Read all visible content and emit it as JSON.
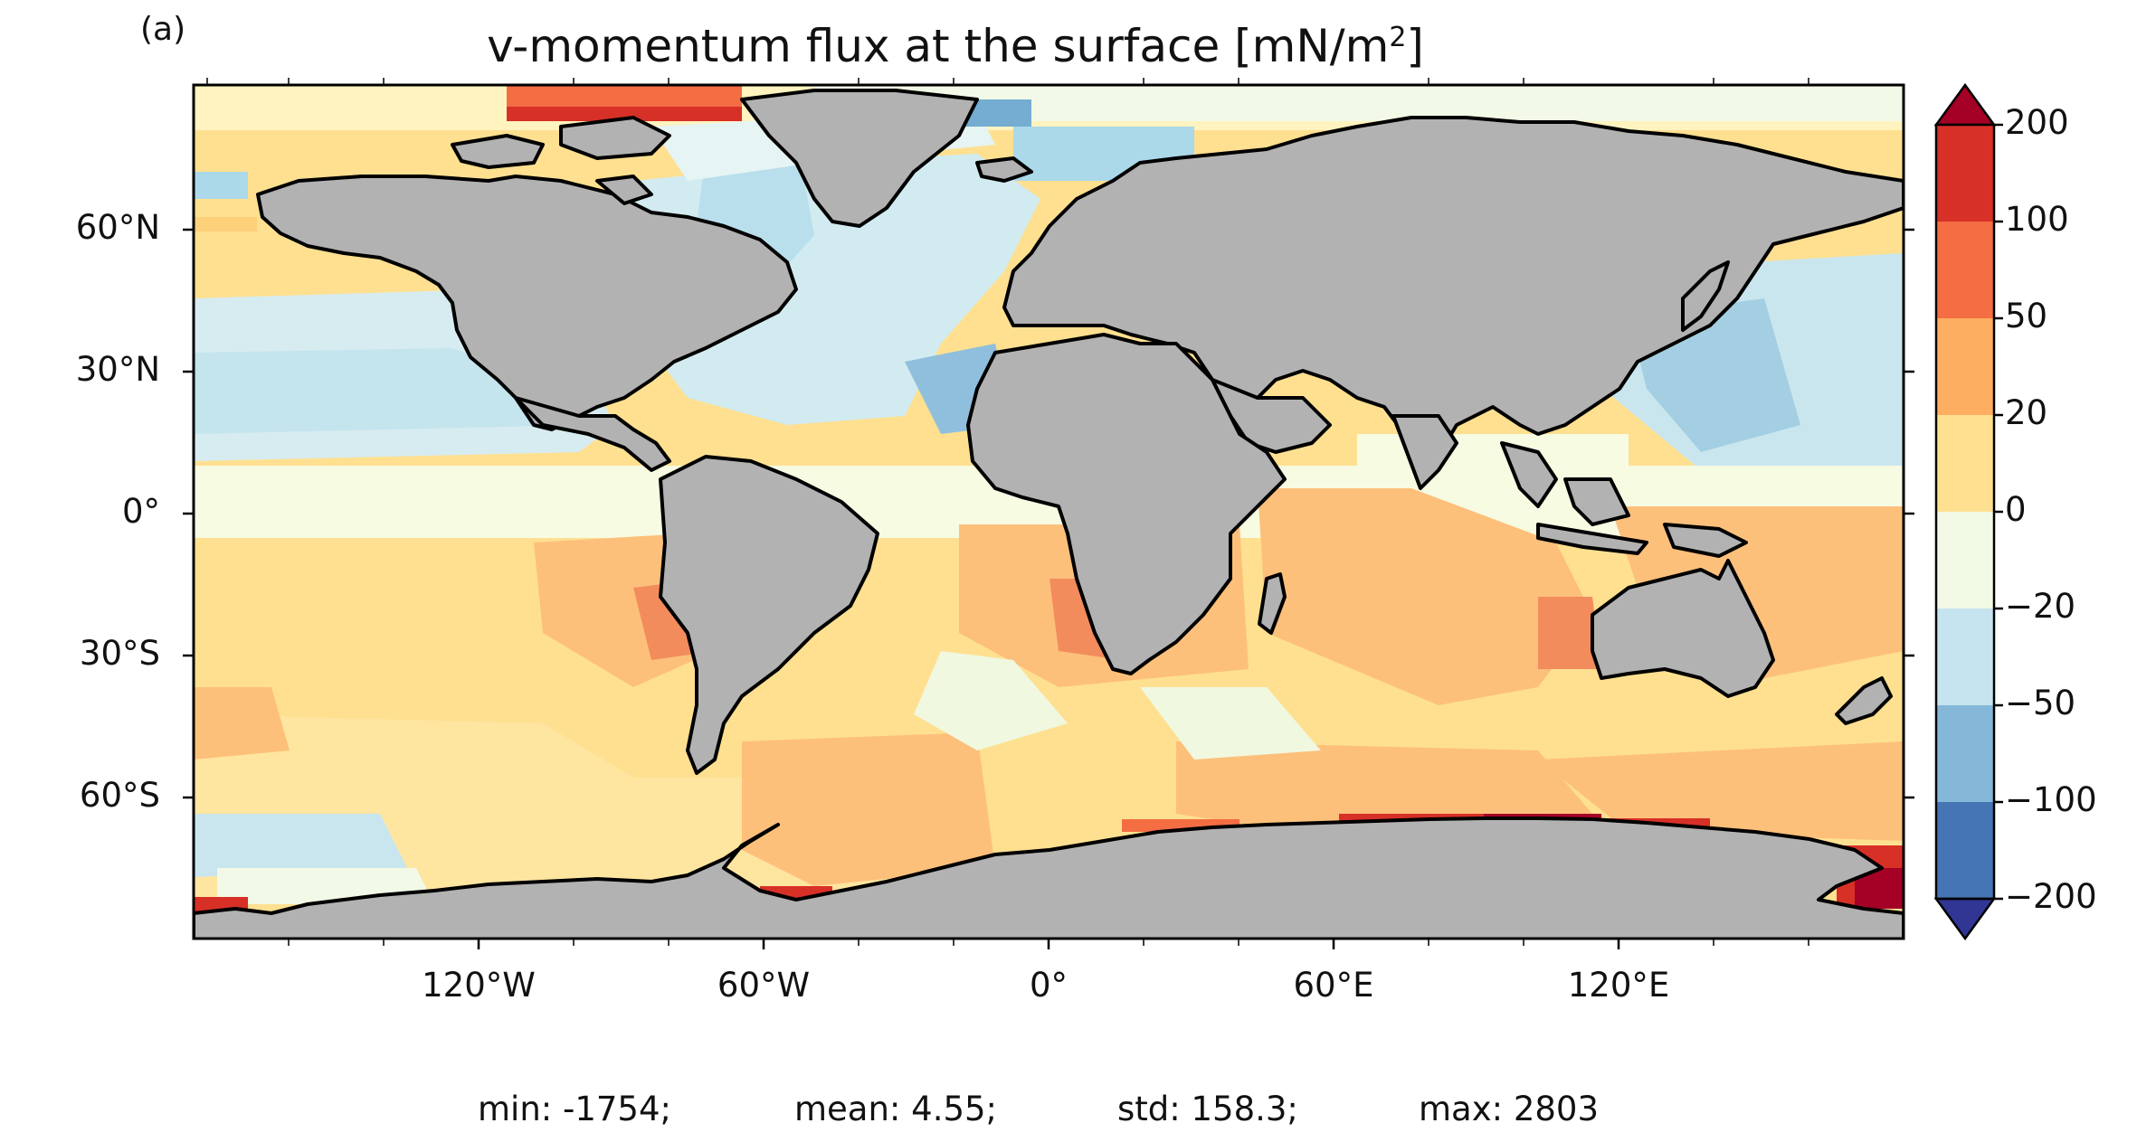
{
  "panel_label": "(a)",
  "title": {
    "prefix": "v-momentum flux at the surface [mN/m",
    "superscript": "2",
    "suffix": "]"
  },
  "map": {
    "projection": "PlateCarree",
    "land_color": "#b2b2b2",
    "coastline_color": "#000000",
    "lat_ticks": [
      "60°N",
      "30°N",
      "0°",
      "30°S",
      "60°S"
    ],
    "lon_ticks": [
      "120°W",
      "60°W",
      "0°",
      "60°E",
      "120°E"
    ]
  },
  "colorbar": {
    "extend": "both",
    "tick_labels": [
      "200",
      "100",
      "50",
      "20",
      "0",
      "−20",
      "−50",
      "−100",
      "−200"
    ],
    "levels": [
      -200,
      -100,
      -50,
      -20,
      0,
      20,
      50,
      100,
      200
    ],
    "colors": [
      "#313695",
      "#4575b4",
      "#74add1",
      "#abd9e9",
      "#e0f3f8",
      "#ffffbf",
      "#fee090",
      "#fdae61",
      "#f46d43",
      "#d73027",
      "#a50026"
    ]
  },
  "stats": {
    "min": "min: -1754;",
    "mean": "mean: 4.55;",
    "std": "std: 158.3;",
    "max": "max: 2803"
  }
}
